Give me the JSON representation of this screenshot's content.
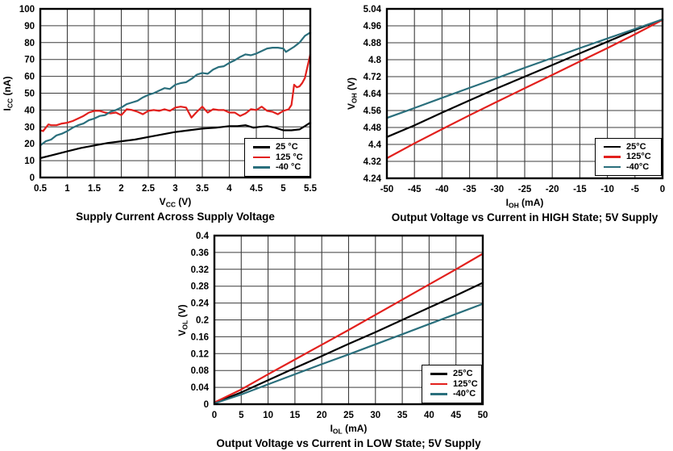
{
  "canvas": {
    "background": "#ffffff"
  },
  "colors": {
    "series_25c": "#000000",
    "series_125c": "#e2201d",
    "series_m40c": "#2a6f7c",
    "grid": "#3c3c3c",
    "frame": "#000000"
  },
  "chart_data": [
    {
      "type": "line",
      "title": "Supply Current Across Supply Voltage",
      "xlabel": {
        "pre": "V",
        "sub": "CC",
        "post": " (V)"
      },
      "ylabel": {
        "pre": "I",
        "sub": "CC",
        "post": " (nA)"
      },
      "xlim": [
        0.5,
        5.5
      ],
      "ylim": [
        0,
        100
      ],
      "xticks": [
        0.5,
        1,
        1.5,
        2,
        2.5,
        3,
        3.5,
        4,
        4.5,
        5,
        5.5
      ],
      "xtick_labels": [
        "0.5",
        "1",
        "1.5",
        "2",
        "2.5",
        "3",
        "3.5",
        "4",
        "4.5",
        "5",
        "5.5"
      ],
      "yticks": [
        0,
        10,
        20,
        30,
        40,
        50,
        60,
        70,
        80,
        90,
        100
      ],
      "ytick_labels": [
        "0",
        "10",
        "20",
        "30",
        "40",
        "50",
        "60",
        "70",
        "80",
        "90",
        "100"
      ],
      "grid": true,
      "legend_position": "bottom-right",
      "series": [
        {
          "name": "25 °C",
          "color": "#000000",
          "x": [
            0.5,
            0.75,
            1,
            1.25,
            1.5,
            1.75,
            2,
            2.25,
            2.5,
            2.75,
            3,
            3.25,
            3.5,
            3.75,
            4,
            4.15,
            4.3,
            4.45,
            4.55,
            4.7,
            4.85,
            5,
            5.15,
            5.3,
            5.4,
            5.5
          ],
          "y": [
            11.5,
            13.5,
            15.5,
            17.5,
            19,
            20.5,
            21.5,
            22.5,
            24,
            25.5,
            27,
            28,
            29,
            29.5,
            30.5,
            30.5,
            31,
            29.5,
            30,
            30.5,
            29.5,
            28,
            28,
            28.5,
            30.5,
            32.5
          ]
        },
        {
          "name": "125 °C",
          "color": "#e2201d",
          "x": [
            0.5,
            0.55,
            0.65,
            0.7,
            0.8,
            0.9,
            1,
            1.1,
            1.2,
            1.3,
            1.4,
            1.5,
            1.6,
            1.7,
            1.8,
            1.9,
            2,
            2.1,
            2.2,
            2.3,
            2.4,
            2.5,
            2.6,
            2.7,
            2.8,
            2.9,
            3,
            3.1,
            3.2,
            3.3,
            3.4,
            3.5,
            3.6,
            3.7,
            3.8,
            3.9,
            4,
            4.1,
            4.2,
            4.3,
            4.4,
            4.5,
            4.6,
            4.7,
            4.8,
            4.9,
            5,
            5.1,
            5.15,
            5.18,
            5.2,
            5.25,
            5.3,
            5.35,
            5.4,
            5.45,
            5.5
          ],
          "y": [
            28,
            27.5,
            31.5,
            31,
            31,
            32,
            32.5,
            33.5,
            35,
            36.5,
            38.5,
            39.5,
            39.5,
            38.5,
            38,
            38.5,
            37,
            40.5,
            40,
            39,
            37.5,
            39.5,
            40,
            39.5,
            40.5,
            39.5,
            41.5,
            42,
            41.5,
            35.5,
            39,
            42,
            38.5,
            40.5,
            40,
            40,
            38.5,
            38.5,
            36.5,
            38,
            40.5,
            40,
            42,
            39.5,
            39,
            37.5,
            39.5,
            40.5,
            43,
            50,
            55,
            53.5,
            54,
            56,
            59,
            66,
            73
          ]
        },
        {
          "name": "-40 °C",
          "color": "#2a6f7c",
          "x": [
            0.5,
            0.6,
            0.7,
            0.8,
            0.9,
            1,
            1.1,
            1.2,
            1.3,
            1.4,
            1.5,
            1.6,
            1.7,
            1.8,
            1.9,
            2,
            2.1,
            2.2,
            2.3,
            2.4,
            2.5,
            2.6,
            2.7,
            2.8,
            2.9,
            3,
            3.1,
            3.2,
            3.3,
            3.4,
            3.5,
            3.6,
            3.7,
            3.8,
            3.9,
            4,
            4.1,
            4.2,
            4.3,
            4.4,
            4.5,
            4.6,
            4.7,
            4.8,
            4.9,
            5,
            5.05,
            5.1,
            5.2,
            5.3,
            5.4,
            5.5
          ],
          "y": [
            19,
            21.5,
            22.5,
            25,
            26,
            27.5,
            29.5,
            31,
            32,
            34,
            35,
            36.5,
            37,
            39,
            40,
            41.5,
            43.5,
            44.5,
            45.5,
            47.5,
            49,
            50,
            51.5,
            53,
            52.5,
            55,
            56,
            56.5,
            58.5,
            61,
            62,
            61.5,
            64,
            65.5,
            66,
            68,
            69.5,
            71.5,
            73,
            72.5,
            73.5,
            75,
            76.5,
            77,
            77,
            76.5,
            74.5,
            75.5,
            77.5,
            80,
            84,
            86
          ]
        }
      ]
    },
    {
      "type": "line",
      "title": "Output Voltage vs Current in HIGH State; 5V Supply",
      "xlabel": {
        "pre": "I",
        "sub": "OH",
        "post": " (mA)"
      },
      "ylabel": {
        "pre": "V",
        "sub": "OH",
        "post": " (V)"
      },
      "xlim": [
        -50,
        0
      ],
      "ylim": [
        4.24,
        5.04
      ],
      "xticks": [
        -50,
        -45,
        -40,
        -35,
        -30,
        -25,
        -20,
        -15,
        -10,
        -5,
        0
      ],
      "xtick_labels": [
        "-50",
        "-45",
        "-40",
        "-35",
        "-30",
        "-25",
        "-20",
        "-15",
        "-10",
        "-5",
        "0"
      ],
      "yticks": [
        4.24,
        4.32,
        4.4,
        4.48,
        4.56,
        4.64,
        4.72,
        4.8,
        4.88,
        4.96,
        5.04
      ],
      "ytick_labels": [
        "4.24",
        "4.32",
        "4.4",
        "4.48",
        "4.56",
        "4.64",
        "4.72",
        "4.8",
        "4.88",
        "4.96",
        "5.04"
      ],
      "grid": true,
      "legend_position": "bottom-right",
      "series": [
        {
          "name": "25°C",
          "color": "#000000",
          "x": [
            -50,
            -45,
            -40,
            -35,
            -30,
            -25,
            -20,
            -15,
            -10,
            -5,
            0
          ],
          "y": [
            4.435,
            4.49,
            4.55,
            4.608,
            4.665,
            4.72,
            4.775,
            4.83,
            4.885,
            4.94,
            4.99
          ]
        },
        {
          "name": "125°C",
          "color": "#e2201d",
          "x": [
            -50,
            -45,
            -40,
            -35,
            -30,
            -25,
            -20,
            -15,
            -10,
            -5,
            0
          ],
          "y": [
            4.335,
            4.405,
            4.472,
            4.538,
            4.602,
            4.665,
            4.728,
            4.792,
            4.855,
            4.92,
            4.988
          ]
        },
        {
          "name": "-40°C",
          "color": "#2a6f7c",
          "x": [
            -50,
            -45,
            -40,
            -35,
            -30,
            -25,
            -20,
            -15,
            -10,
            -5,
            0
          ],
          "y": [
            4.525,
            4.572,
            4.62,
            4.667,
            4.714,
            4.762,
            4.808,
            4.855,
            4.9,
            4.945,
            4.99
          ]
        }
      ]
    },
    {
      "type": "line",
      "title": "Output Voltage vs Current in LOW State; 5V Supply",
      "xlabel": {
        "pre": "I",
        "sub": "OL",
        "post": " (mA)"
      },
      "ylabel": {
        "pre": "V",
        "sub": "OL",
        "post": " (V)"
      },
      "xlim": [
        0,
        50
      ],
      "ylim": [
        0,
        0.4
      ],
      "xticks": [
        0,
        5,
        10,
        15,
        20,
        25,
        30,
        35,
        40,
        45,
        50
      ],
      "xtick_labels": [
        "0",
        "5",
        "10",
        "15",
        "20",
        "25",
        "30",
        "35",
        "40",
        "45",
        "50"
      ],
      "yticks": [
        0,
        0.04,
        0.08,
        0.12,
        0.16,
        0.2,
        0.24,
        0.28,
        0.32,
        0.36,
        0.4
      ],
      "ytick_labels": [
        "0",
        "0.04",
        "0.08",
        "0.12",
        "0.16",
        "0.2",
        "0.24",
        "0.28",
        "0.32",
        "0.36",
        "0.4"
      ],
      "grid": true,
      "legend_position": "bottom-right",
      "series": [
        {
          "name": "25°C",
          "color": "#000000",
          "x": [
            0,
            5,
            10,
            15,
            20,
            25,
            30,
            35,
            40,
            45,
            50
          ],
          "y": [
            0.003,
            0.028,
            0.057,
            0.086,
            0.114,
            0.143,
            0.171,
            0.2,
            0.229,
            0.258,
            0.288
          ]
        },
        {
          "name": "125°C",
          "color": "#e2201d",
          "x": [
            0,
            5,
            10,
            15,
            20,
            25,
            30,
            35,
            40,
            45,
            50
          ],
          "y": [
            0.004,
            0.035,
            0.071,
            0.106,
            0.141,
            0.176,
            0.212,
            0.248,
            0.284,
            0.32,
            0.357
          ]
        },
        {
          "name": "-40°C",
          "color": "#2a6f7c",
          "x": [
            0,
            5,
            10,
            15,
            20,
            25,
            30,
            35,
            40,
            45,
            50
          ],
          "y": [
            0.002,
            0.023,
            0.047,
            0.071,
            0.095,
            0.118,
            0.142,
            0.166,
            0.19,
            0.214,
            0.238
          ]
        }
      ]
    }
  ]
}
